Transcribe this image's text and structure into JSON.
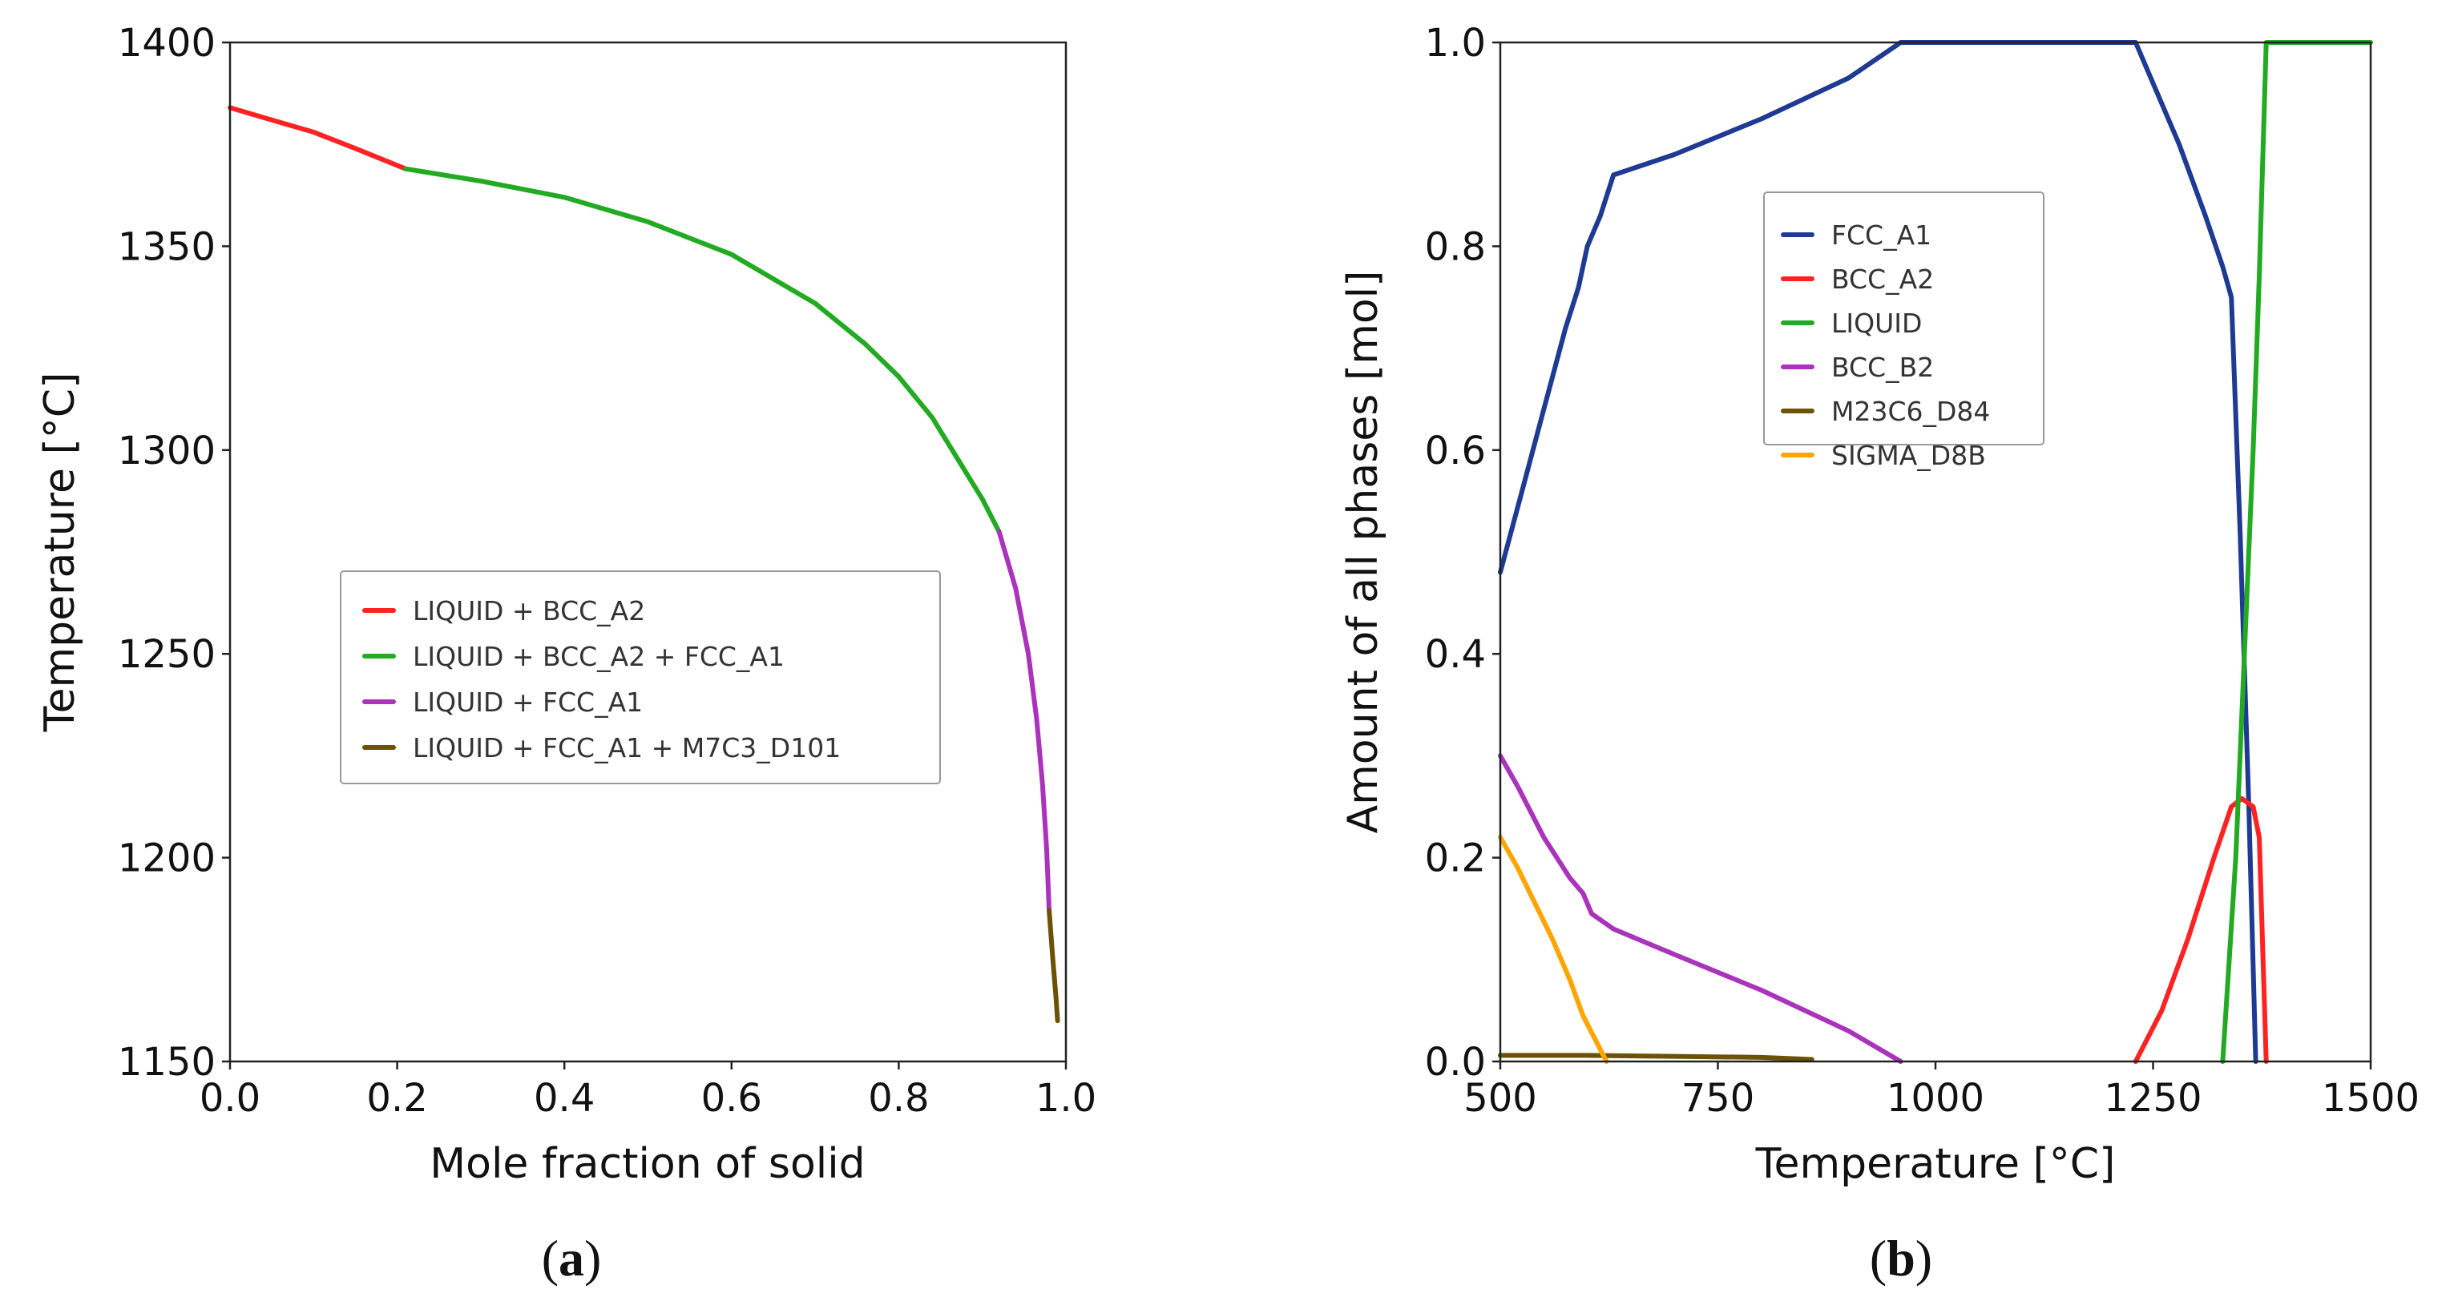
{
  "chart_data": [
    {
      "id": "a",
      "panel_label": "a",
      "type": "line",
      "title": "",
      "xlabel": "Mole fraction of solid",
      "ylabel": "Temperature [°C]",
      "xlim": [
        0.0,
        1.0
      ],
      "ylim": [
        1150,
        1400
      ],
      "xticks": [
        0.0,
        0.2,
        0.4,
        0.6,
        0.8,
        1.0
      ],
      "xtick_labels": [
        "0.0",
        "0.2",
        "0.4",
        "0.6",
        "0.8",
        "1.0"
      ],
      "yticks": [
        1150,
        1200,
        1250,
        1300,
        1350,
        1400
      ],
      "ytick_labels": [
        "1150",
        "1200",
        "1250",
        "1300",
        "1350",
        "1400"
      ],
      "legend_position": "center-right",
      "series": [
        {
          "name": "LIQUID + BCC_A2",
          "color": "#ff2222",
          "x": [
            0.0,
            0.05,
            0.1,
            0.15,
            0.21
          ],
          "y": [
            1384,
            1381,
            1378,
            1374,
            1369
          ]
        },
        {
          "name": "LIQUID + BCC_A2 + FCC_A1",
          "color": "#22aa22",
          "x": [
            0.21,
            0.3,
            0.4,
            0.5,
            0.6,
            0.7,
            0.76,
            0.8,
            0.84,
            0.87,
            0.9,
            0.92
          ],
          "y": [
            1369,
            1366,
            1362,
            1356,
            1348,
            1336,
            1326,
            1318,
            1308,
            1298,
            1288,
            1280
          ]
        },
        {
          "name": "LIQUID + FCC_A1",
          "color": "#aa33bb",
          "x": [
            0.92,
            0.94,
            0.955,
            0.965,
            0.972,
            0.977,
            0.98
          ],
          "y": [
            1280,
            1266,
            1250,
            1234,
            1218,
            1202,
            1187
          ]
        },
        {
          "name": "LIQUID + FCC_A1 + M7C3_D101",
          "color": "#6b5204",
          "x": [
            0.98,
            0.984,
            0.988,
            0.99
          ],
          "y": [
            1187,
            1176,
            1166,
            1160
          ]
        }
      ]
    },
    {
      "id": "b",
      "panel_label": "b",
      "type": "line",
      "title": "",
      "xlabel": "Temperature [°C]",
      "ylabel": "Amount of all phases [mol]",
      "xlim": [
        500,
        1500
      ],
      "ylim": [
        0.0,
        1.0
      ],
      "xticks": [
        500,
        750,
        1000,
        1250,
        1500
      ],
      "xtick_labels": [
        "500",
        "750",
        "1000",
        "1250",
        "1500"
      ],
      "yticks": [
        0.0,
        0.2,
        0.4,
        0.6,
        0.8,
        1.0
      ],
      "ytick_labels": [
        "0.0",
        "0.2",
        "0.4",
        "0.6",
        "0.8",
        "1.0"
      ],
      "legend_position": "upper-center",
      "series": [
        {
          "name": "FCC_A1",
          "color": "#1f3a93",
          "x": [
            500,
            525,
            550,
            575,
            590,
            600,
            615,
            630,
            700,
            800,
            900,
            960,
            1100,
            1230,
            1250,
            1280,
            1310,
            1330,
            1340,
            1350,
            1360,
            1368
          ],
          "y": [
            0.48,
            0.56,
            0.64,
            0.72,
            0.76,
            0.8,
            0.83,
            0.87,
            0.89,
            0.925,
            0.965,
            1.0,
            1.0,
            1.0,
            0.96,
            0.9,
            0.83,
            0.78,
            0.75,
            0.52,
            0.25,
            0.0
          ]
        },
        {
          "name": "BCC_A2",
          "color": "#ff2222",
          "x": [
            1230,
            1260,
            1290,
            1320,
            1340,
            1352,
            1365,
            1372,
            1380
          ],
          "y": [
            0.0,
            0.05,
            0.12,
            0.2,
            0.25,
            0.258,
            0.25,
            0.22,
            0.0
          ]
        },
        {
          "name": "LIQUID",
          "color": "#22aa22",
          "x": [
            1330,
            1345,
            1355,
            1365,
            1372,
            1380,
            1500
          ],
          "y": [
            0.0,
            0.2,
            0.4,
            0.6,
            0.77,
            1.0,
            1.0
          ]
        },
        {
          "name": "BCC_B2",
          "color": "#aa33bb",
          "x": [
            500,
            520,
            550,
            580,
            595,
            605,
            630,
            700,
            800,
            900,
            960
          ],
          "y": [
            0.3,
            0.27,
            0.22,
            0.18,
            0.165,
            0.145,
            0.13,
            0.105,
            0.07,
            0.03,
            0.0
          ]
        },
        {
          "name": "M23C6_D84",
          "color": "#6b5204",
          "x": [
            500,
            600,
            700,
            800,
            858
          ],
          "y": [
            0.006,
            0.006,
            0.005,
            0.004,
            0.002
          ]
        },
        {
          "name": "SIGMA_D8B",
          "color": "#ffa500",
          "x": [
            500,
            520,
            540,
            560,
            580,
            595,
            610,
            622
          ],
          "y": [
            0.22,
            0.19,
            0.155,
            0.12,
            0.08,
            0.045,
            0.02,
            0.0
          ]
        }
      ]
    }
  ]
}
